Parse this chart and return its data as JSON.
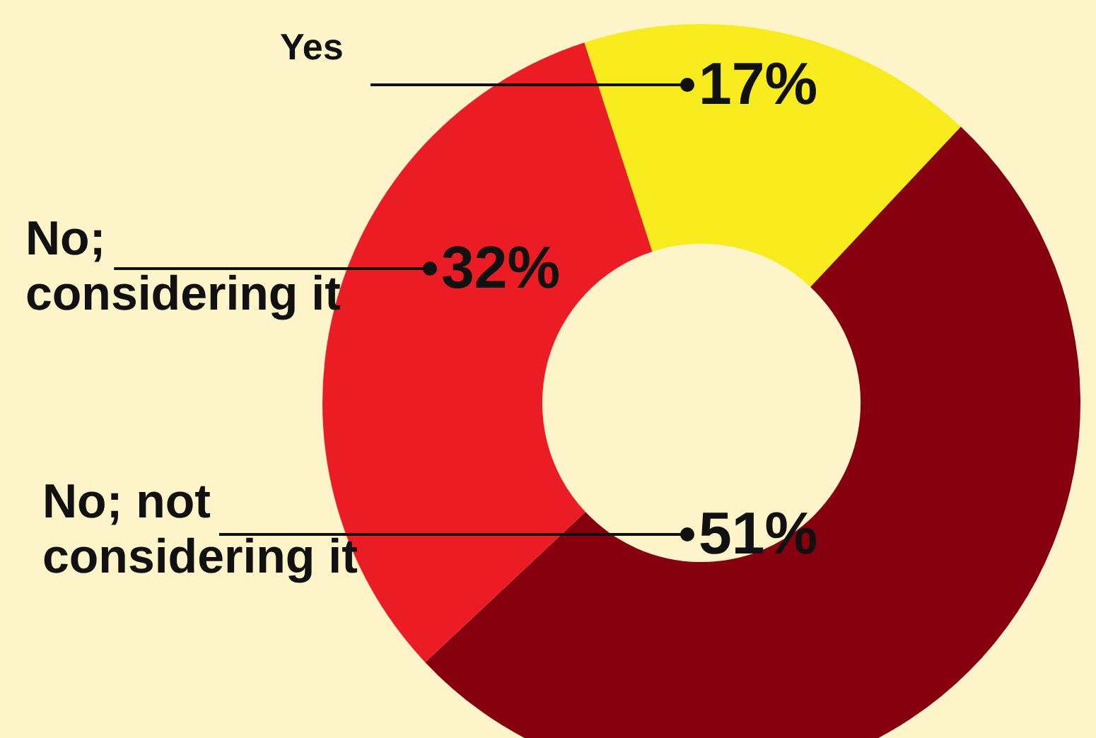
{
  "chart_data": {
    "type": "donut",
    "categories": [
      "Yes",
      "No; not considering it",
      "No; considering it"
    ],
    "values": [
      17,
      51,
      32
    ],
    "colors": [
      "#f8ec1e",
      "#86000f",
      "#ec1c24"
    ],
    "value_labels": [
      "17%",
      "51%",
      "32%"
    ],
    "legend": false
  }
}
